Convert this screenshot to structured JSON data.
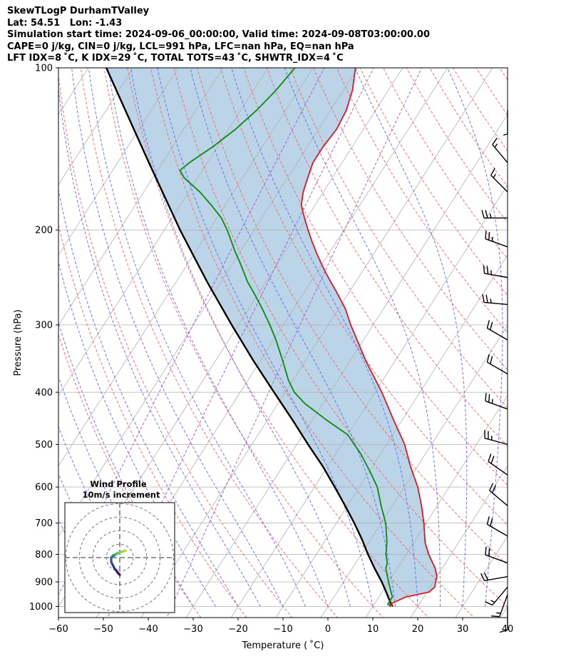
{
  "header": {
    "line1": "SkewTLogP DurhamTValley",
    "line2": "Lat: 54.51   Lon: -1.43",
    "line3": "Simulation start time: 2024-09-06_00:00:00, Valid time: 2024-09-08T03:00:00.00",
    "line4": "CAPE=0 j/kg, CIN=0 j/kg, LCL=991 hPa, LFC=nan hPa, EQ=nan hPa",
    "line5": "LFT IDX=8 ˚C, K IDX=29 ˚C, TOTAL TOTS=43 ˚C, SHWTR_IDX=4 ˚C"
  },
  "hodograph": {
    "title": "Wind Profile",
    "subtitle": "10m/s increment"
  },
  "colors": {
    "temperature": "#e8141b",
    "dewpoint": "#0a8a0a",
    "parcel": "#000000",
    "cape_fill": "#a4c6e0",
    "dry_adiabat": "#f25f5f",
    "moist_adiabat": "#5a63ee",
    "mixing_ratio": "#a044c8",
    "isotherm": "#b0b0b0",
    "grid": "#b0b0b0"
  },
  "chart_data": {
    "type": "line",
    "title": "",
    "xlabel": "Temperature ( ˚C)",
    "ylabel": "Pressure (hPa)",
    "xlim": [
      -60,
      40
    ],
    "ylim": [
      1050,
      100
    ],
    "yscale": "log",
    "grid": true,
    "x_ticks": [
      "−60",
      "−50",
      "−40",
      "−30",
      "−20",
      "−10",
      "0",
      "10",
      "20",
      "30",
      "40"
    ],
    "x_tick_values": [
      -60,
      -50,
      -40,
      -30,
      -20,
      -10,
      0,
      10,
      20,
      30,
      40
    ],
    "y_ticks": [
      "100",
      "200",
      "300",
      "400",
      "500",
      "600",
      "700",
      "800",
      "900",
      "1000"
    ],
    "y_tick_values": [
      100,
      200,
      300,
      400,
      500,
      600,
      700,
      800,
      900,
      1000
    ],
    "series": [
      {
        "name": "",
        "role": "temperature",
        "points": [
          [
            1000,
            14.5
          ],
          [
            990,
            13.5
          ],
          [
            960,
            16.0
          ],
          [
            940,
            20.5
          ],
          [
            920,
            21.0
          ],
          [
            900,
            20.5
          ],
          [
            880,
            20.0
          ],
          [
            850,
            18.5
          ],
          [
            800,
            15.0
          ],
          [
            760,
            12.5
          ],
          [
            700,
            9.5
          ],
          [
            650,
            6.5
          ],
          [
            600,
            3.0
          ],
          [
            550,
            -1.5
          ],
          [
            500,
            -6.0
          ],
          [
            450,
            -12.0
          ],
          [
            400,
            -18.5
          ],
          [
            350,
            -26.5
          ],
          [
            300,
            -35.0
          ],
          [
            280,
            -38.5
          ],
          [
            260,
            -43.0
          ],
          [
            250,
            -45.5
          ],
          [
            240,
            -48.0
          ],
          [
            230,
            -50.5
          ],
          [
            220,
            -53.0
          ],
          [
            210,
            -55.5
          ],
          [
            200,
            -58.0
          ],
          [
            190,
            -60.5
          ],
          [
            180,
            -63.0
          ],
          [
            170,
            -64.5
          ],
          [
            160,
            -65.5
          ],
          [
            150,
            -66.5
          ],
          [
            140,
            -66.5
          ],
          [
            130,
            -66.0
          ],
          [
            120,
            -66.5
          ],
          [
            110,
            -68.0
          ],
          [
            100,
            -70.5
          ]
        ]
      },
      {
        "name": "",
        "role": "dewpoint",
        "points": [
          [
            1000,
            14.0
          ],
          [
            990,
            13.0
          ],
          [
            960,
            13.0
          ],
          [
            940,
            12.0
          ],
          [
            900,
            10.0
          ],
          [
            870,
            8.5
          ],
          [
            850,
            7.5
          ],
          [
            830,
            7.0
          ],
          [
            800,
            5.5
          ],
          [
            760,
            4.0
          ],
          [
            700,
            1.0
          ],
          [
            650,
            -2.5
          ],
          [
            600,
            -6.0
          ],
          [
            560,
            -10.0
          ],
          [
            520,
            -14.5
          ],
          [
            480,
            -20.0
          ],
          [
            450,
            -27.0
          ],
          [
            420,
            -34.0
          ],
          [
            400,
            -38.0
          ],
          [
            380,
            -41.0
          ],
          [
            350,
            -45.0
          ],
          [
            320,
            -49.5
          ],
          [
            300,
            -53.0
          ],
          [
            280,
            -57.0
          ],
          [
            260,
            -61.5
          ],
          [
            250,
            -64.0
          ],
          [
            230,
            -68.5
          ],
          [
            220,
            -71.0
          ],
          [
            200,
            -76.0
          ],
          [
            190,
            -79.0
          ],
          [
            180,
            -83.0
          ],
          [
            170,
            -87.5
          ],
          [
            160,
            -93.0
          ],
          [
            155,
            -95.0
          ],
          [
            150,
            -94.0
          ],
          [
            140,
            -91.0
          ],
          [
            130,
            -88.5
          ],
          [
            120,
            -86.5
          ],
          [
            110,
            -85.0
          ],
          [
            100,
            -84.0
          ]
        ]
      },
      {
        "name": "",
        "role": "parcel",
        "points": [
          [
            1000,
            14.5
          ],
          [
            991,
            13.8
          ],
          [
            950,
            11.5
          ],
          [
            900,
            8.5
          ],
          [
            850,
            5.0
          ],
          [
            800,
            1.5
          ],
          [
            750,
            -2.0
          ],
          [
            700,
            -6.0
          ],
          [
            650,
            -10.5
          ],
          [
            600,
            -15.5
          ],
          [
            550,
            -21.0
          ],
          [
            500,
            -27.5
          ],
          [
            450,
            -34.5
          ],
          [
            400,
            -42.5
          ],
          [
            350,
            -51.5
          ],
          [
            300,
            -61.5
          ],
          [
            250,
            -73.0
          ],
          [
            200,
            -86.5
          ],
          [
            150,
            -103.0
          ],
          [
            100,
            -126.0
          ]
        ]
      }
    ],
    "wind_profile": {
      "pressure": [
        1000,
        980,
        960,
        940,
        920,
        900,
        870,
        840,
        800,
        760,
        730,
        700,
        660,
        620,
        580,
        540,
        500,
        460,
        430,
        400,
        370,
        350,
        320,
        300,
        280,
        260,
        240,
        220,
        200,
        185,
        170,
        160,
        150,
        140,
        130,
        120,
        110,
        100
      ],
      "u": [
        0.0,
        -0.5,
        -1.0,
        -1.5,
        -2.0,
        -3.0,
        -3.5,
        -4.0,
        -4.5,
        -5.0,
        -5.0,
        -5.0,
        -5.0,
        -4.5,
        -4.5,
        -4.0,
        -4.0,
        -3.5,
        -3.5,
        -3.0,
        -3.0,
        -3.0,
        -2.5,
        -2.5,
        -2.0,
        -2.0,
        -1.5,
        -1.5,
        -1.0,
        -0.5,
        0.0,
        0.5,
        1.0,
        1.5,
        2.0,
        2.5,
        3.0,
        3.5
      ],
      "v": [
        -10.0,
        -9.5,
        -9.0,
        -8.5,
        -7.5,
        -6.5,
        -5.5,
        -4.5,
        -3.5,
        -2.5,
        -1.5,
        -0.5,
        0.0,
        0.5,
        0.5,
        1.0,
        1.0,
        1.0,
        1.5,
        1.5,
        1.5,
        1.5,
        2.0,
        2.0,
        2.0,
        2.0,
        2.5,
        2.5,
        2.5,
        3.0,
        3.0,
        3.0,
        3.5,
        3.5,
        3.5,
        4.0,
        4.0,
        4.0
      ]
    },
    "wind_barbs": [
      {
        "p": 120,
        "dir": 180,
        "spd": 5
      },
      {
        "p": 150,
        "dir": 320,
        "spd": 15
      },
      {
        "p": 170,
        "dir": 315,
        "spd": 15
      },
      {
        "p": 190,
        "dir": 270,
        "spd": 25
      },
      {
        "p": 215,
        "dir": 290,
        "spd": 25
      },
      {
        "p": 245,
        "dir": 280,
        "spd": 25
      },
      {
        "p": 275,
        "dir": 275,
        "spd": 25
      },
      {
        "p": 320,
        "dir": 300,
        "spd": 20
      },
      {
        "p": 370,
        "dir": 300,
        "spd": 20
      },
      {
        "p": 430,
        "dir": 290,
        "spd": 25
      },
      {
        "p": 500,
        "dir": 285,
        "spd": 25
      },
      {
        "p": 570,
        "dir": 305,
        "spd": 20
      },
      {
        "p": 650,
        "dir": 310,
        "spd": 20
      },
      {
        "p": 740,
        "dir": 300,
        "spd": 20
      },
      {
        "p": 830,
        "dir": 290,
        "spd": 20
      },
      {
        "p": 880,
        "dir": 260,
        "spd": 20
      },
      {
        "p": 920,
        "dir": 220,
        "spd": 15
      },
      {
        "p": 950,
        "dir": 200,
        "spd": 15
      },
      {
        "p": 1000,
        "dir": 180,
        "spd": 10
      }
    ]
  }
}
